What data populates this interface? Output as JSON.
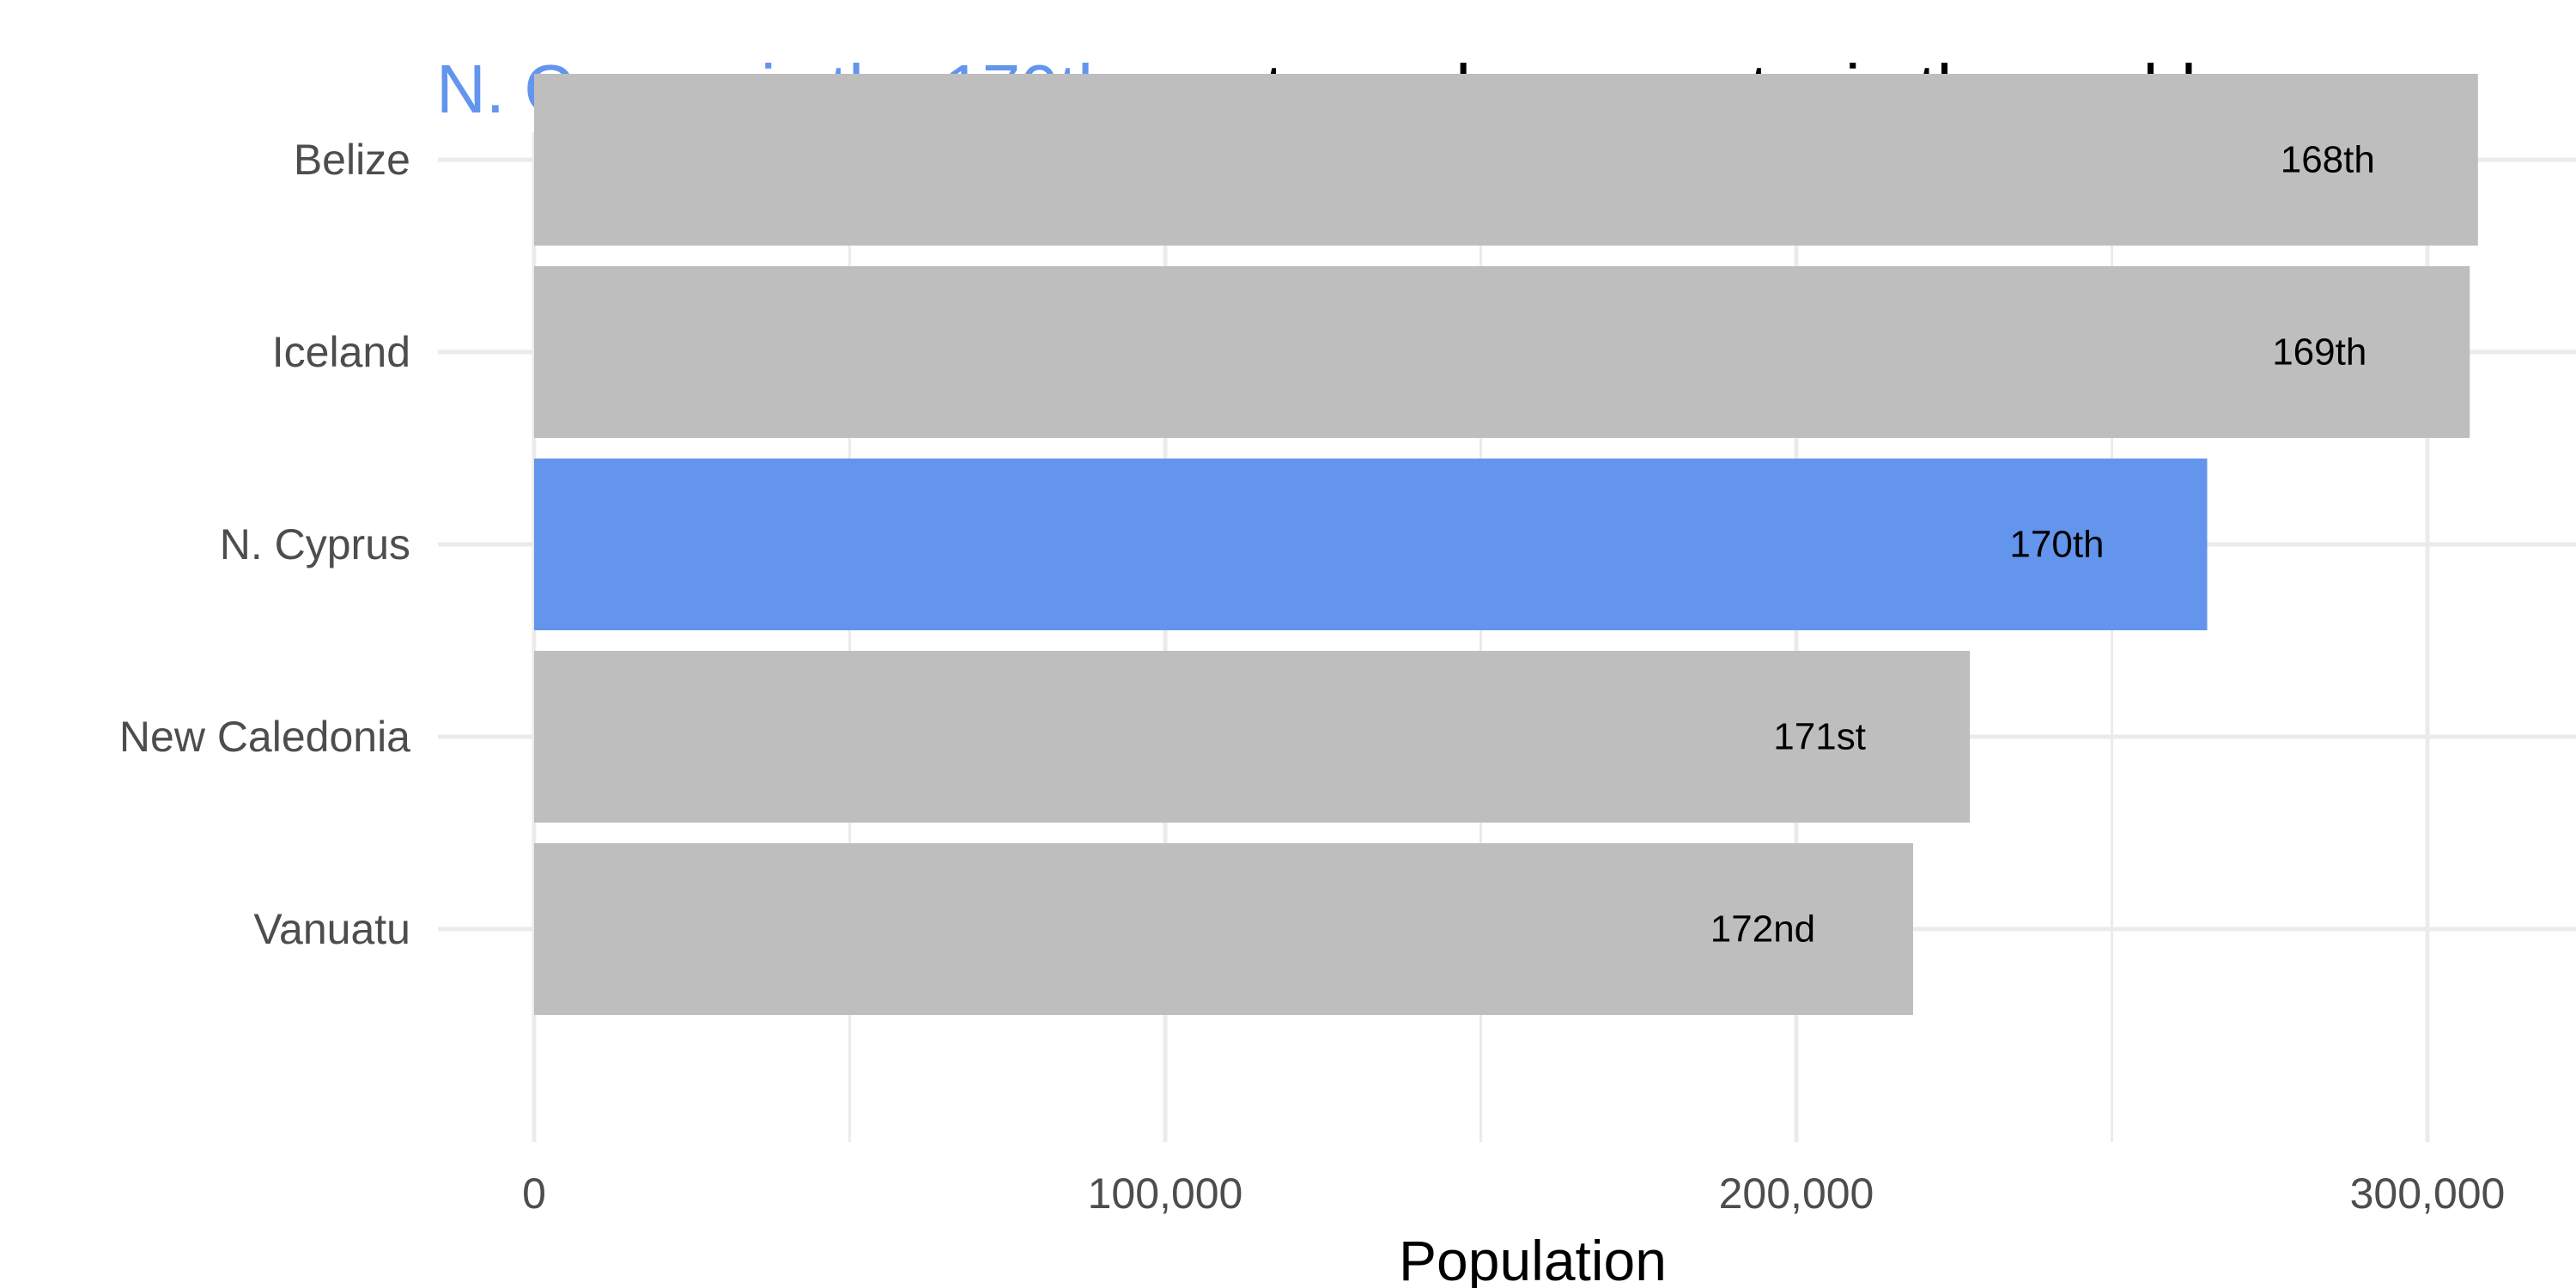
{
  "title": {
    "highlight": "N. Cyprus is the 170th",
    "rest": " most populous country in the world"
  },
  "colors": {
    "highlight": "#6495ED",
    "default_bar": "#BEBEBE",
    "grid": "#EBEBEB",
    "axis_text": "#4D4D4D"
  },
  "chart_data": {
    "type": "bar",
    "orientation": "horizontal",
    "categories": [
      "Belize",
      "Iceland",
      "N. Cyprus",
      "New Caledonia",
      "Vanuatu"
    ],
    "values": [
      308000,
      306700,
      265100,
      227500,
      218500
    ],
    "data_labels": [
      "168th",
      "169th",
      "170th",
      "171st",
      "172nd"
    ],
    "highlight_index": 2,
    "xlabel": "Population",
    "ylabel": "",
    "xlim": [
      0,
      320000
    ],
    "x_ticks": [
      0,
      100000,
      200000,
      300000
    ],
    "x_tick_labels": [
      "0",
      "100,000",
      "200,000",
      "300,000"
    ],
    "grid": true,
    "legend": "none"
  }
}
